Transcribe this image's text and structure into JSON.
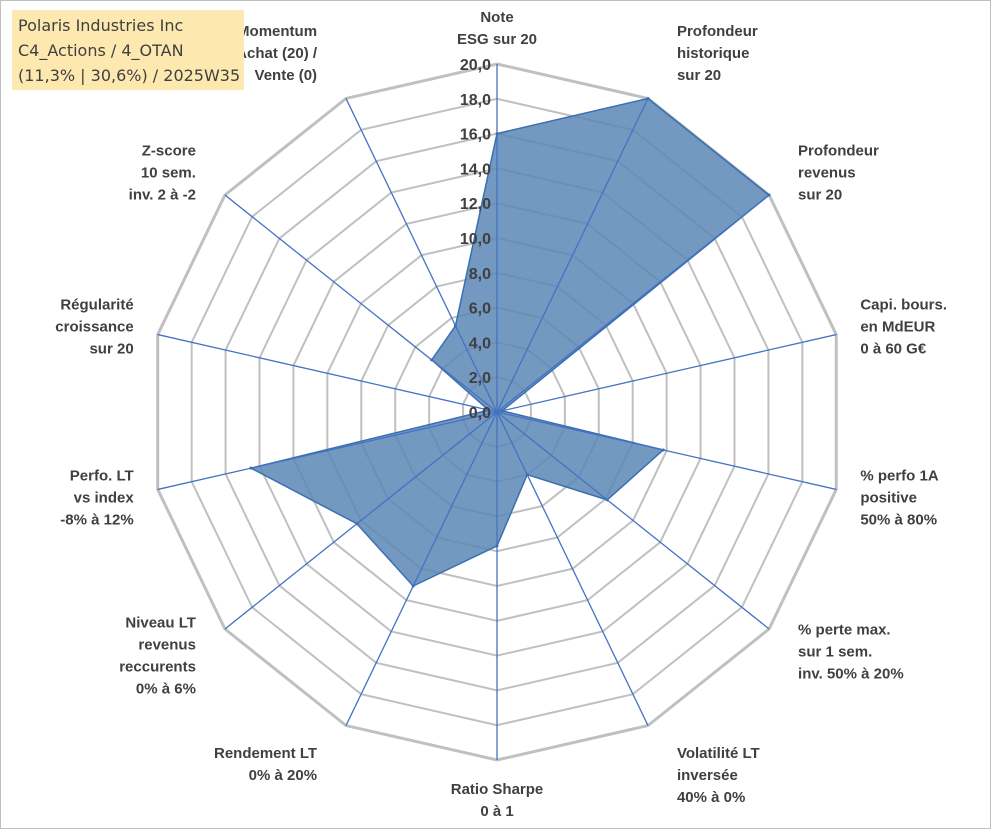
{
  "info": {
    "line1": "Polaris Industries Inc",
    "line2": "C4_Actions / 4_OTAN",
    "line3": "(11,3% | 30,6%) / 2025W35"
  },
  "colors": {
    "fill": "#5b87b5",
    "stroke": "#3a6fb3",
    "grid": "#c0c0c0",
    "spoke": "#4472c4"
  },
  "chart_data": {
    "type": "radar",
    "rmin": 0,
    "rmax": 20,
    "ticks": [
      "0,0",
      "2,0",
      "4,0",
      "6,0",
      "8,0",
      "10,0",
      "12,0",
      "14,0",
      "16,0",
      "18,0",
      "20,0"
    ],
    "axes": [
      {
        "label": [
          "Note",
          "ESG sur 20"
        ],
        "value": 16
      },
      {
        "label": [
          "Profondeur",
          "historique",
          "sur 20"
        ],
        "value": 20
      },
      {
        "label": [
          "Profondeur",
          "revenus",
          "sur 20"
        ],
        "value": 20
      },
      {
        "label": [
          "Capi. bours.",
          "en MdEUR",
          "0 à 60 G€"
        ],
        "value": 0.3
      },
      {
        "label": [
          "% perfo 1A",
          "positive",
          "50% à 80%"
        ],
        "value": 9.8
      },
      {
        "label": [
          "% perte max.",
          "sur 1 sem.",
          "inv. 50% à 20%"
        ],
        "value": 8.1
      },
      {
        "label": [
          "Volatilité LT",
          "inversée",
          "40% à 0%"
        ],
        "value": 4.0
      },
      {
        "label": [
          "Ratio Sharpe",
          "0 à 1"
        ],
        "value": 7.7
      },
      {
        "label": [
          "Rendement LT",
          "0% à 20%"
        ],
        "value": 11.1
      },
      {
        "label": [
          "Niveau LT",
          "revenus",
          "reccurents",
          "0% à 6%"
        ],
        "value": 10.3
      },
      {
        "label": [
          "Perfo. LT",
          "vs index",
          "-8% à 12%"
        ],
        "value": 14.5
      },
      {
        "label": [
          "Régularité",
          "croissance",
          "sur 20"
        ],
        "value": 0.5
      },
      {
        "label": [
          "Z-score",
          "10 sem.",
          "inv. 2 à -2"
        ],
        "value": 4.8
      },
      {
        "label": [
          "Momentum",
          "Achat (20) /",
          "Vente (0)"
        ],
        "value": 5.5
      }
    ]
  }
}
